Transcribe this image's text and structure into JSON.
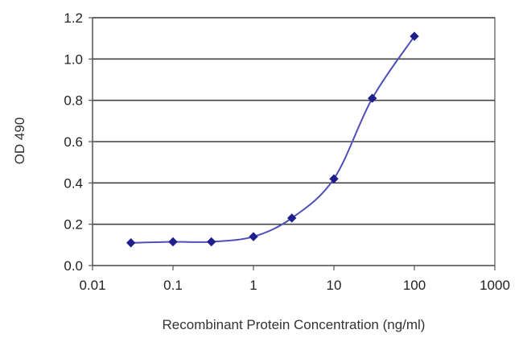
{
  "chart_data": {
    "type": "line",
    "title": "",
    "xlabel": "Recombinant Protein Concentration (ng/ml)",
    "ylabel": "OD 490",
    "x_scale": "log",
    "xlim": [
      0.01,
      1000
    ],
    "ylim": [
      0,
      1.2
    ],
    "x_tick_labels": [
      "0.01",
      "0.1",
      "1",
      "10",
      "100",
      "1000"
    ],
    "y_tick_labels": [
      "0.0",
      "0.2",
      "0.4",
      "0.6",
      "0.8",
      "1.0",
      "1.2"
    ],
    "grid": "horizontal",
    "legend": "none",
    "series": [
      {
        "x": [
          0.03,
          0.1,
          0.3,
          1,
          3,
          10,
          30,
          100
        ],
        "y": [
          0.11,
          0.115,
          0.115,
          0.14,
          0.23,
          0.42,
          0.81,
          1.11
        ]
      }
    ],
    "colors": {
      "line": "#4f4fb8",
      "marker": "#1e1e8c",
      "grid": "#444444",
      "axis": "#555555"
    }
  }
}
